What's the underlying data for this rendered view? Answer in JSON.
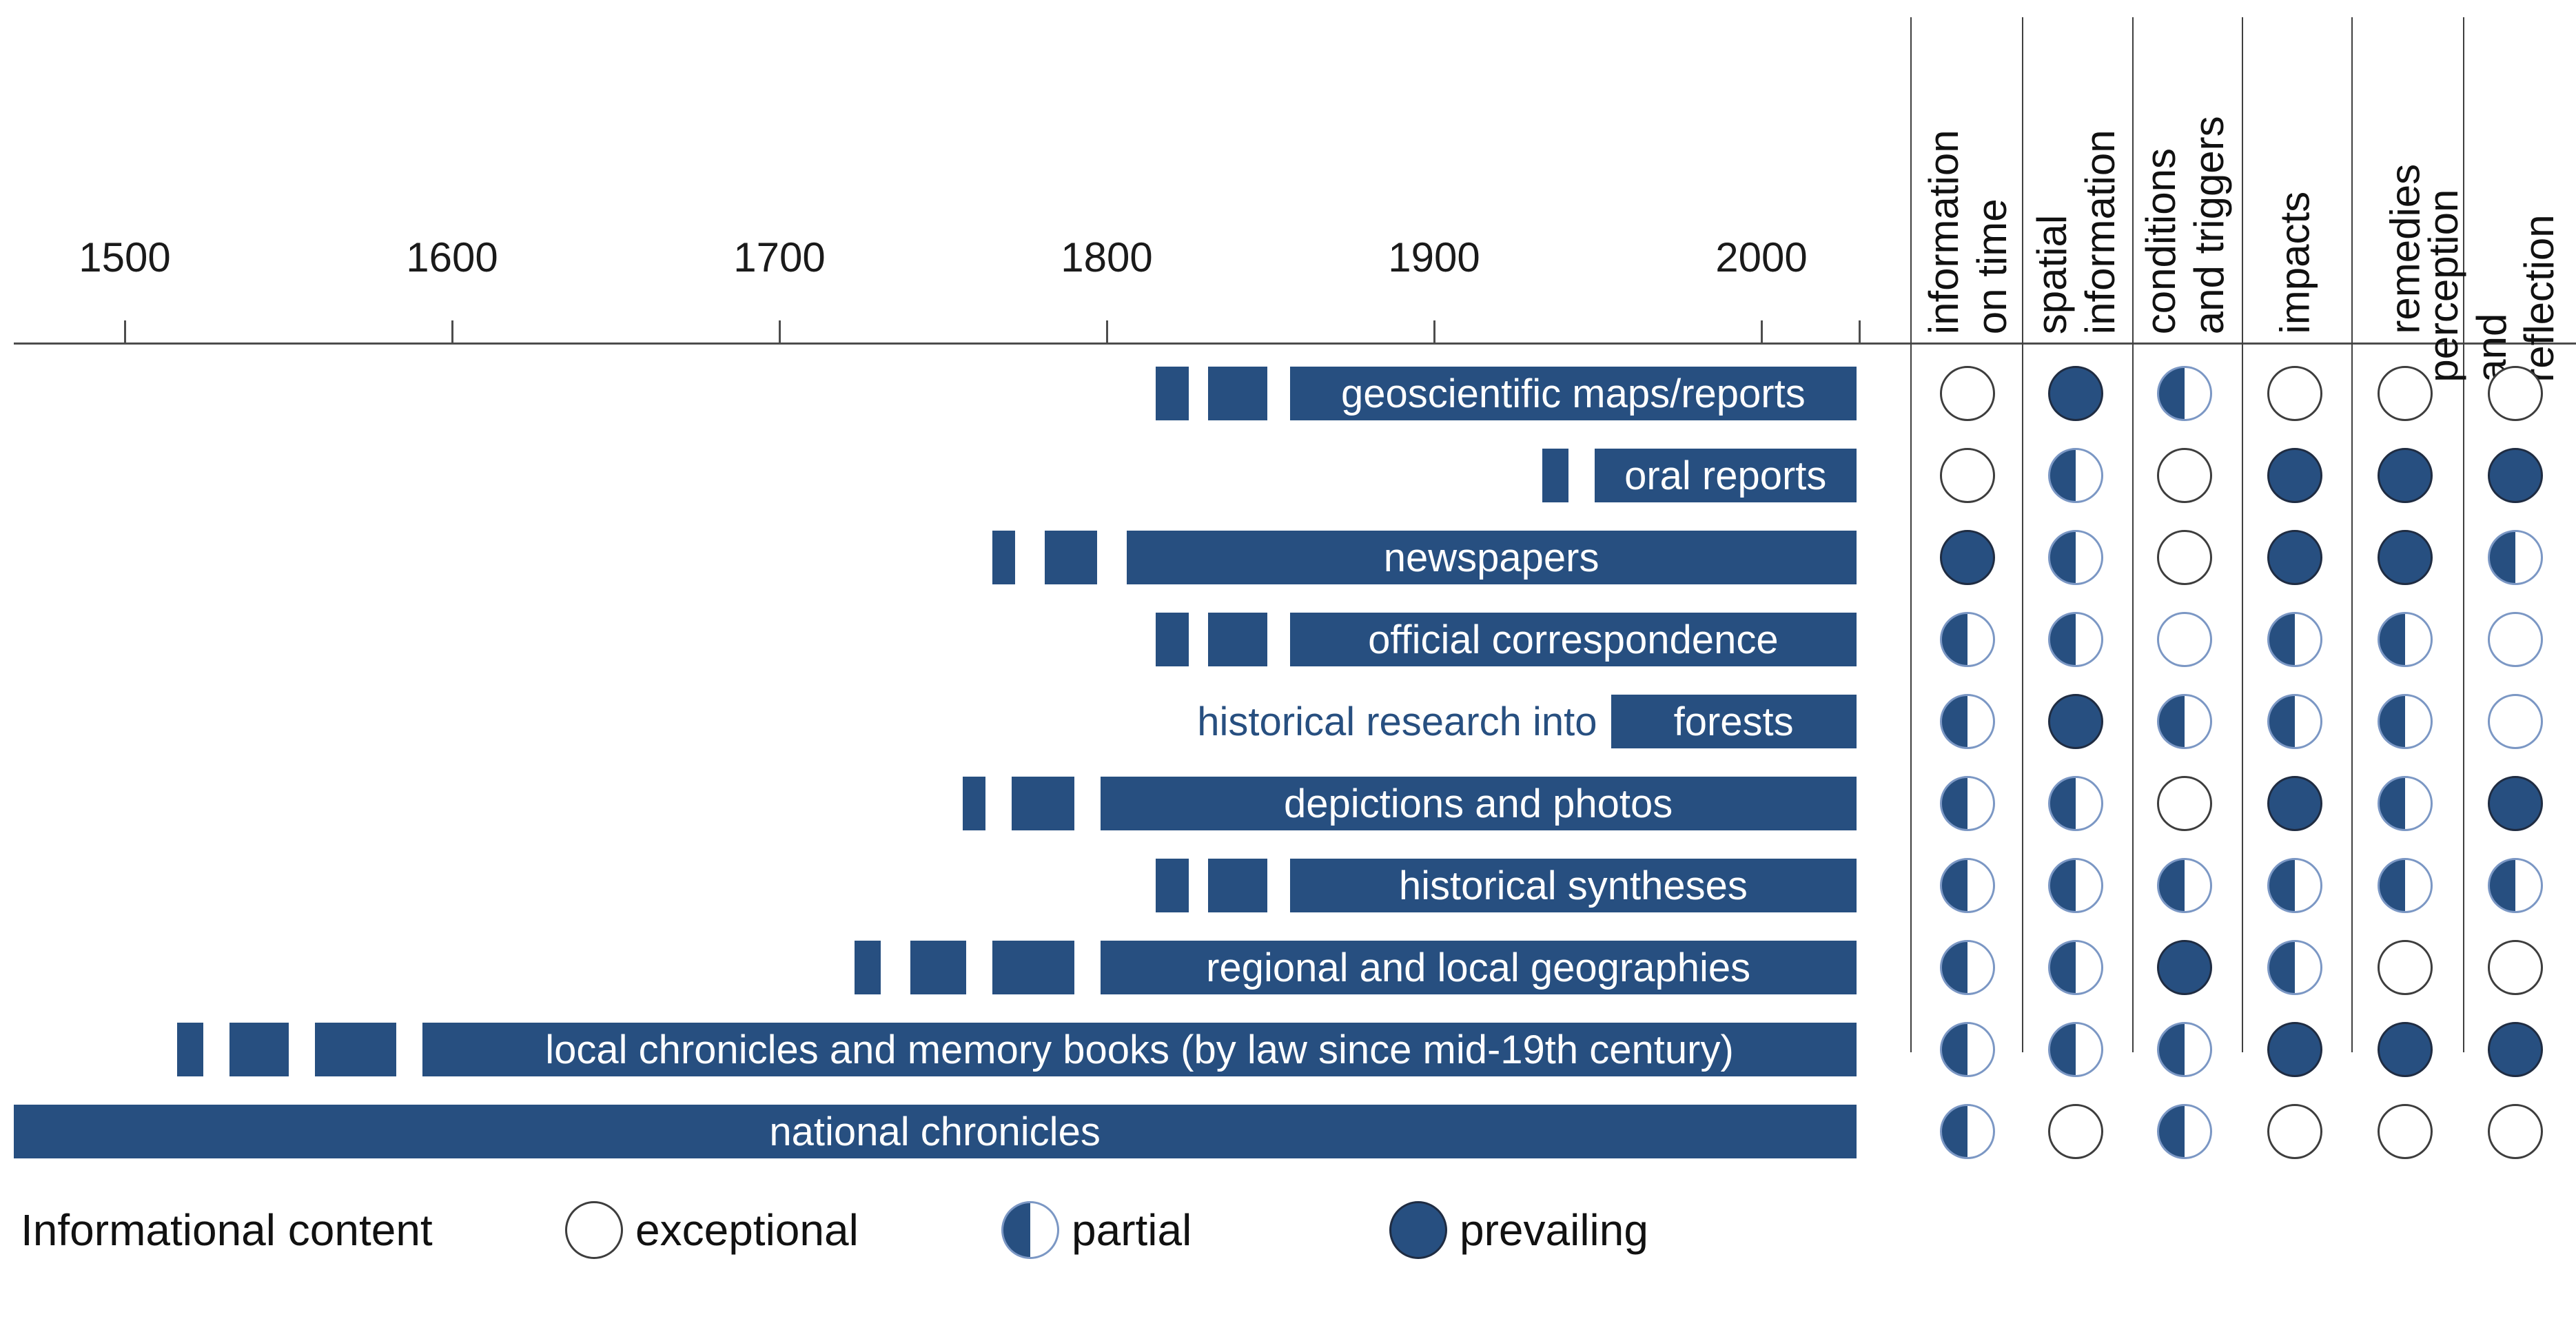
{
  "figure": {
    "background": "#ffffff",
    "bar_color": "#274f80",
    "half_outline_color": "#7b97c4",
    "empty_outline_color": "#3d3d3d",
    "full_outline_color": "#1f2c42",
    "axis_color": "#4d4d4d",
    "text_color": "#111111"
  },
  "chart_data": {
    "type": "bar",
    "variant": "horizontal-timeline-bars-with-dot-rating-matrix",
    "title": "",
    "xlabel": "",
    "ylabel": "",
    "x_axis": {
      "tick_years": [
        1500,
        1600,
        1700,
        1800,
        1900,
        2000
      ],
      "end_tick_year": 2030,
      "range": [
        1466,
        2030
      ],
      "grid": false
    },
    "columns": [
      {
        "id": "information-on-time",
        "lines": [
          "information",
          "on time"
        ]
      },
      {
        "id": "spatial-information",
        "lines": [
          "spatial",
          "information"
        ]
      },
      {
        "id": "conditions-and-triggers",
        "lines": [
          "conditions",
          "and triggers"
        ]
      },
      {
        "id": "impacts",
        "lines": [
          "impacts"
        ]
      },
      {
        "id": "remedies",
        "lines": [
          "remedies"
        ]
      },
      {
        "id": "perception-and-reflection",
        "lines": [
          "perception",
          "and reflection"
        ]
      }
    ],
    "rows": [
      {
        "label": "geoscientific maps/reports",
        "outside_label": "",
        "lead_segments": [
          [
            1815,
            1825
          ],
          [
            1831,
            1849
          ]
        ],
        "main_segment": [
          1856,
          2029
        ],
        "ratings": [
          "exceptional",
          "prevailing",
          "partial",
          "exceptional",
          "exceptional",
          "exceptional"
        ]
      },
      {
        "label": "oral reports",
        "outside_label": "",
        "lead_segments": [
          [
            1933,
            1941
          ]
        ],
        "main_segment": [
          1949,
          2029
        ],
        "ratings": [
          "exceptional",
          "partial",
          "exceptional",
          "prevailing",
          "prevailing",
          "prevailing"
        ]
      },
      {
        "label": "newspapers",
        "outside_label": "",
        "lead_segments": [
          [
            1765,
            1772
          ],
          [
            1781,
            1797
          ]
        ],
        "main_segment": [
          1806,
          2029
        ],
        "ratings": [
          "prevailing",
          "partial",
          "exceptional",
          "prevailing",
          "prevailing",
          "partial"
        ]
      },
      {
        "label": "official correspondence",
        "outside_label": "",
        "lead_segments": [
          [
            1815,
            1825
          ],
          [
            1831,
            1849
          ]
        ],
        "main_segment": [
          1856,
          2029
        ],
        "ratings": [
          "partial",
          "partial",
          "exceptional",
          "partial",
          "partial",
          "exceptional"
        ]
      },
      {
        "label": "forests",
        "outside_label": "historical research into",
        "lead_segments": [],
        "main_segment": [
          1954,
          2029
        ],
        "ratings": [
          "partial",
          "prevailing",
          "partial",
          "partial",
          "partial",
          "exceptional"
        ]
      },
      {
        "label": "depictions and photos",
        "outside_label": "",
        "lead_segments": [
          [
            1756,
            1763
          ],
          [
            1771,
            1790
          ]
        ],
        "main_segment": [
          1798,
          2029
        ],
        "ratings": [
          "partial",
          "partial",
          "exceptional",
          "prevailing",
          "partial",
          "prevailing"
        ]
      },
      {
        "label": "historical syntheses",
        "outside_label": "",
        "lead_segments": [
          [
            1815,
            1825
          ],
          [
            1831,
            1849
          ]
        ],
        "main_segment": [
          1856,
          2029
        ],
        "ratings": [
          "partial",
          "partial",
          "partial",
          "partial",
          "partial",
          "partial"
        ]
      },
      {
        "label": "regional and local geographies",
        "outside_label": "",
        "lead_segments": [
          [
            1723,
            1731
          ],
          [
            1740,
            1757
          ],
          [
            1765,
            1790
          ]
        ],
        "main_segment": [
          1798,
          2029
        ],
        "ratings": [
          "partial",
          "partial",
          "prevailing",
          "partial",
          "exceptional",
          "exceptional"
        ]
      },
      {
        "label": "local chronicles and memory books (by law since mid-19th century)",
        "outside_label": "",
        "lead_segments": [
          [
            1516,
            1524
          ],
          [
            1532,
            1550
          ],
          [
            1558,
            1583
          ]
        ],
        "main_segment": [
          1591,
          2029
        ],
        "ratings": [
          "partial",
          "partial",
          "partial",
          "prevailing",
          "prevailing",
          "prevailing"
        ]
      },
      {
        "label": "national chronicles",
        "outside_label": "",
        "lead_segments": [],
        "main_segment": [
          1466,
          2029
        ],
        "ratings": [
          "partial",
          "exceptional",
          "partial",
          "exceptional",
          "exceptional",
          "exceptional"
        ]
      }
    ],
    "blue_outline_exceptional_cells": [
      [
        3,
        2
      ],
      [
        3,
        5
      ],
      [
        4,
        5
      ]
    ],
    "legend": {
      "title": "Informational content",
      "items": [
        {
          "label": "exceptional",
          "fill": "empty"
        },
        {
          "label": "partial",
          "fill": "half"
        },
        {
          "label": "prevailing",
          "fill": "full"
        }
      ],
      "position": "bottom-left"
    }
  }
}
